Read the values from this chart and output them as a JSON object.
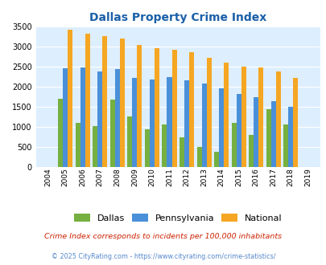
{
  "title": "Dallas Property Crime Index",
  "years": [
    2004,
    2005,
    2006,
    2007,
    2008,
    2009,
    2010,
    2011,
    2012,
    2013,
    2014,
    2015,
    2016,
    2017,
    2018,
    2019
  ],
  "dallas": [
    0,
    1700,
    1090,
    1010,
    1680,
    1260,
    940,
    1060,
    730,
    490,
    380,
    1090,
    790,
    1440,
    1060,
    0
  ],
  "pennsylvania": [
    0,
    2460,
    2470,
    2380,
    2430,
    2210,
    2180,
    2240,
    2160,
    2070,
    1960,
    1810,
    1740,
    1640,
    1490,
    0
  ],
  "national": [
    0,
    3420,
    3310,
    3250,
    3190,
    3040,
    2960,
    2910,
    2860,
    2720,
    2590,
    2500,
    2470,
    2380,
    2210,
    0
  ],
  "dallas_color": "#76b041",
  "pennsylvania_color": "#4a90d9",
  "national_color": "#f5a623",
  "plot_bg_color": "#ddeeff",
  "fig_bg_color": "#ffffff",
  "title_color": "#1a5fa8",
  "ylabel_max": 3500,
  "yticks": [
    0,
    500,
    1000,
    1500,
    2000,
    2500,
    3000,
    3500
  ],
  "note_text": "Crime Index corresponds to incidents per 100,000 inhabitants",
  "footer_text": "© 2025 CityRating.com - https://www.cityrating.com/crime-statistics/",
  "legend_labels": [
    "Dallas",
    "Pennsylvania",
    "National"
  ],
  "note_color": "#cc2200",
  "footer_color": "#5588cc"
}
